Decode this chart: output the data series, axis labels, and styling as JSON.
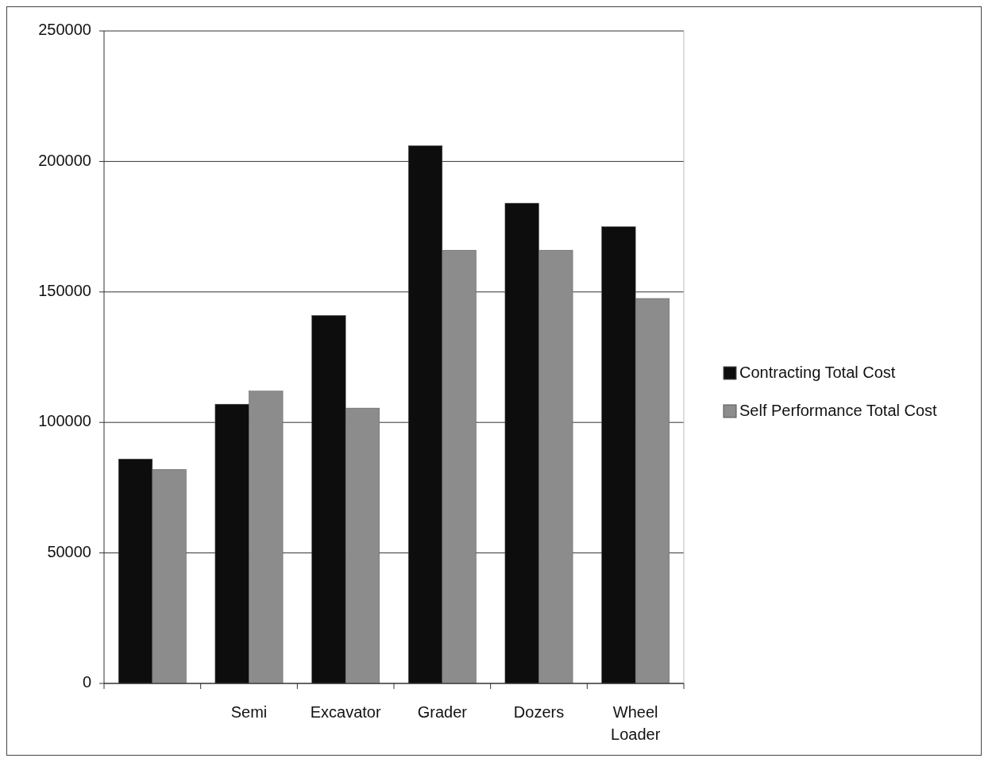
{
  "chart_data": {
    "type": "bar",
    "categories": [
      null,
      "Semi",
      "Excavator",
      "Grader",
      "Dozers",
      "Wheel Loader"
    ],
    "series": [
      {
        "name": "Contracting Total Cost",
        "color": "#0d0d0d",
        "values": [
          86000,
          107000,
          141000,
          206000,
          184000,
          175000
        ]
      },
      {
        "name": "Self Performance Total Cost",
        "color": "#8c8c8c",
        "values": [
          82000,
          112000,
          105500,
          166000,
          166000,
          147500
        ]
      }
    ],
    "ylim": [
      0,
      250000
    ],
    "yticks": [
      0,
      50000,
      100000,
      150000,
      200000,
      250000
    ],
    "grid": "y",
    "legend": "right"
  }
}
